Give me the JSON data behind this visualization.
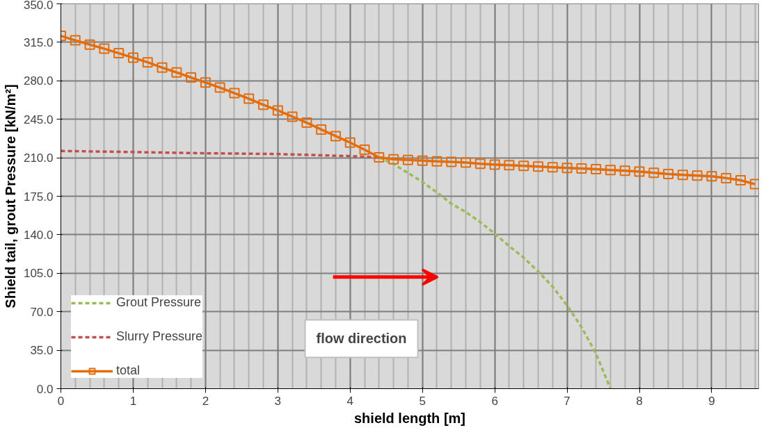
{
  "chart_data": {
    "type": "line",
    "xlabel": "shield length [m]",
    "ylabel": "Shield tail, grout Pressure [kN/m²]",
    "xlim": [
      0,
      9.65
    ],
    "xticks": [
      0,
      1,
      2,
      3,
      4,
      5,
      6,
      7,
      8,
      9
    ],
    "ylim": [
      0,
      350
    ],
    "yticks": [
      {
        "value": 0,
        "label": "0.0"
      },
      {
        "value": 35,
        "label": "35.0"
      },
      {
        "value": 70,
        "label": "70.0"
      },
      {
        "value": 105,
        "label": "105.0"
      },
      {
        "value": 140,
        "label": "140.0"
      },
      {
        "value": 175,
        "label": "175.0"
      },
      {
        "value": 210,
        "label": "210.0"
      },
      {
        "value": 245,
        "label": "245.0"
      },
      {
        "value": 280,
        "label": "280.0"
      },
      {
        "value": 315,
        "label": "315.0"
      },
      {
        "value": 350,
        "label": "350.0"
      }
    ],
    "grid": true,
    "legend": "bottom left",
    "series": [
      {
        "name": "Grout Pressure",
        "color": "#9bbb59",
        "line_style": "dashed",
        "marker": "none",
        "x": [
          4.4,
          4.6,
          4.8,
          5.0,
          5.2,
          5.4,
          5.6,
          5.8,
          6.0,
          6.2,
          6.4,
          6.6,
          6.8,
          7.0,
          7.2,
          7.4,
          7.6
        ],
        "values": [
          210.4,
          204.2,
          196.2,
          188,
          178.5,
          168.2,
          160.6,
          151.4,
          141,
          129.6,
          119.2,
          106.6,
          92.8,
          75.6,
          56,
          31.9,
          0
        ]
      },
      {
        "name": "Slurry Pressure",
        "color": "#c0504d",
        "line_style": "dashed",
        "marker": "none",
        "x": [
          0,
          1,
          2,
          3,
          4,
          4.4
        ],
        "values": [
          216.2,
          215.2,
          214.1,
          213.4,
          211.5,
          210.4
        ]
      },
      {
        "name": "total",
        "color": "#e46c0a",
        "line_style": "solid",
        "marker": "square",
        "x": [
          0,
          0.2,
          0.4,
          0.6,
          0.8,
          1.0,
          1.2,
          1.4,
          1.6,
          1.8,
          2.0,
          2.2,
          2.4,
          2.6,
          2.8,
          3.0,
          3.2,
          3.4,
          3.6,
          3.8,
          4.0,
          4.2,
          4.4,
          4.6,
          4.8,
          5.0,
          5.2,
          5.4,
          5.6,
          5.8,
          6.0,
          6.2,
          6.4,
          6.6,
          6.8,
          7.0,
          7.2,
          7.4,
          7.6,
          7.8,
          8.0,
          8.2,
          8.4,
          8.6,
          8.8,
          9.0,
          9.2,
          9.4,
          9.6
        ],
        "values": [
          320.9,
          316.8,
          312.9,
          309.2,
          305.1,
          301,
          296.8,
          292,
          287.6,
          283,
          278.4,
          273.8,
          268.8,
          263.7,
          258.2,
          253.1,
          247.4,
          241.9,
          235.7,
          229.7,
          223.8,
          217.3,
          210.4,
          208.6,
          208,
          207.4,
          206.8,
          206.3,
          205.7,
          204.5,
          203.8,
          203.2,
          202.6,
          202,
          201.4,
          200.7,
          200.2,
          199.6,
          198.9,
          198.2,
          197.4,
          196.3,
          195.2,
          194.5,
          193.8,
          193.1,
          191.5,
          189.5,
          186
        ]
      }
    ],
    "annotations": [
      "flow direction"
    ]
  }
}
